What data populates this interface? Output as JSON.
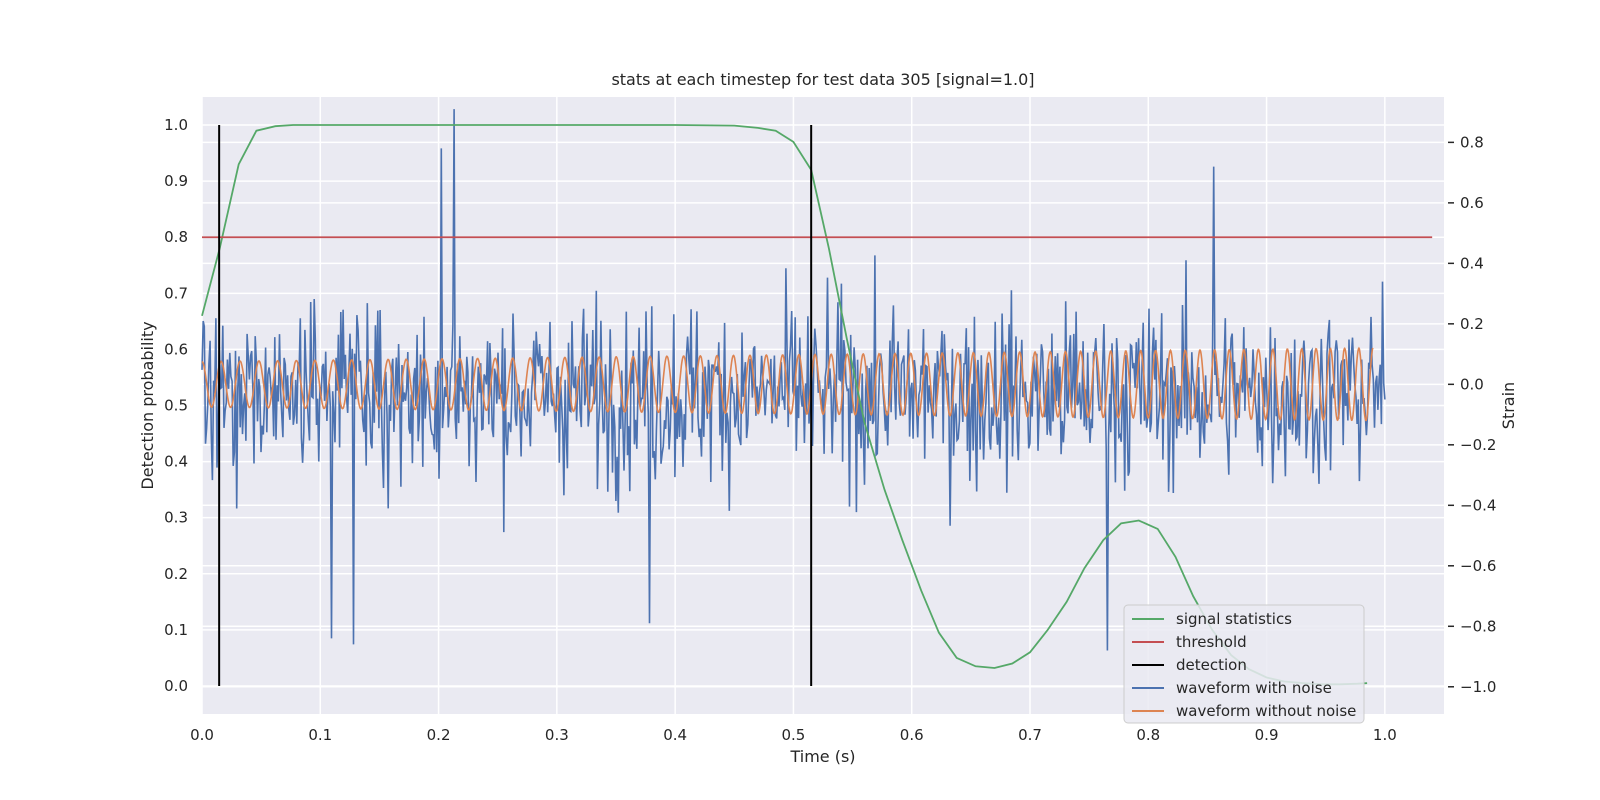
{
  "chart_data": {
    "type": "line",
    "title": "stats at each timestep for test data 305 [signal=1.0]",
    "xlabel": "Time (s)",
    "ylabel": "Detection probability",
    "ylabel_right": "Strain",
    "xlim": [
      0.0,
      1.05
    ],
    "ylim": [
      -0.05,
      1.05
    ],
    "ylim_right": [
      -1.09,
      0.95
    ],
    "x_ticks": [
      0.0,
      0.1,
      0.2,
      0.3,
      0.4,
      0.5,
      0.6,
      0.7,
      0.8,
      0.9,
      1.0
    ],
    "x_tick_labels": [
      "0.0",
      "0.1",
      "0.2",
      "0.3",
      "0.4",
      "0.5",
      "0.6",
      "0.7",
      "0.8",
      "0.9",
      "1.0"
    ],
    "y_ticks": [
      0.0,
      0.1,
      0.2,
      0.3,
      0.4,
      0.5,
      0.6,
      0.7,
      0.8,
      0.9,
      1.0
    ],
    "y_tick_labels": [
      "0.0",
      "0.1",
      "0.2",
      "0.3",
      "0.4",
      "0.5",
      "0.6",
      "0.7",
      "0.8",
      "0.9",
      "1.0"
    ],
    "y_right_ticks": [
      -1.0,
      -0.8,
      -0.6,
      -0.4,
      -0.2,
      0.0,
      0.2,
      0.4,
      0.6,
      0.8
    ],
    "y_right_tick_labels": [
      "−1.0",
      "−0.8",
      "−0.6",
      "−0.4",
      "−0.2",
      "0.0",
      "0.2",
      "0.4",
      "0.6",
      "0.8"
    ],
    "grid": true,
    "legend_position": "lower-right",
    "colors": {
      "signal_statistics": "#55a868",
      "threshold": "#c44e52",
      "detection": "#000000",
      "waveform_with_noise": "#4c72b0",
      "waveform_without_noise": "#dd8452",
      "plot_background": "#eaeaf2",
      "grid": "#ffffff"
    },
    "series": [
      {
        "name": "signal statistics",
        "axis": "left",
        "x": [
          0.0,
          0.015,
          0.031,
          0.046,
          0.062,
          0.077,
          0.1,
          0.2,
          0.3,
          0.4,
          0.45,
          0.47,
          0.485,
          0.5,
          0.515,
          0.53,
          0.545,
          0.56,
          0.577,
          0.592,
          0.608,
          0.623,
          0.638,
          0.654,
          0.67,
          0.685,
          0.7,
          0.715,
          0.731,
          0.746,
          0.762,
          0.777,
          0.792,
          0.808,
          0.823,
          0.838,
          0.854,
          0.87,
          0.885,
          0.9,
          0.915,
          0.931,
          0.946,
          0.962,
          0.977,
          0.985
        ],
        "y": [
          0.66,
          0.78,
          0.93,
          0.99,
          0.998,
          1.0,
          1.0,
          1.0,
          1.0,
          1.0,
          0.999,
          0.995,
          0.99,
          0.97,
          0.92,
          0.78,
          0.62,
          0.47,
          0.35,
          0.26,
          0.17,
          0.095,
          0.05,
          0.035,
          0.032,
          0.04,
          0.06,
          0.1,
          0.15,
          0.21,
          0.26,
          0.29,
          0.295,
          0.28,
          0.23,
          0.16,
          0.1,
          0.055,
          0.03,
          0.015,
          0.008,
          0.005,
          0.003,
          0.003,
          0.004,
          0.005
        ]
      },
      {
        "name": "threshold",
        "axis": "left",
        "x": [
          0.0,
          1.04
        ],
        "y": [
          0.8,
          0.8
        ]
      },
      {
        "name": "detection",
        "axis": "left",
        "x": [
          0.0145,
          0.0145,
          0.515,
          0.515
        ],
        "y": [
          0.0,
          1.0,
          0.0,
          1.0
        ],
        "segments": [
          [
            0.0145,
            0.0,
            1.0
          ],
          [
            0.515,
            0.0,
            1.0
          ]
        ]
      },
      {
        "name": "waveform with noise",
        "axis": "right",
        "x_range": [
          0.0,
          1.0
        ],
        "approx_center": -0.03,
        "approx_amplitude": 0.33,
        "peaks": [
          {
            "x": 0.213,
            "y": 0.91
          },
          {
            "x": 0.202,
            "y": 0.78
          },
          {
            "x": 0.855,
            "y": 0.72
          },
          {
            "x": 0.109,
            "y": -0.84
          },
          {
            "x": 0.128,
            "y": -0.86
          },
          {
            "x": 0.378,
            "y": -0.79
          },
          {
            "x": 0.765,
            "y": -0.88
          }
        ]
      },
      {
        "name": "waveform without noise",
        "axis": "right",
        "x_range": [
          0.0,
          0.99
        ],
        "approx_amplitude_start": 0.075,
        "approx_amplitude_end": 0.12,
        "approx_cycles": 72
      }
    ],
    "legend": [
      "signal statistics",
      "threshold",
      "detection",
      "waveform with noise",
      "waveform without noise"
    ]
  }
}
